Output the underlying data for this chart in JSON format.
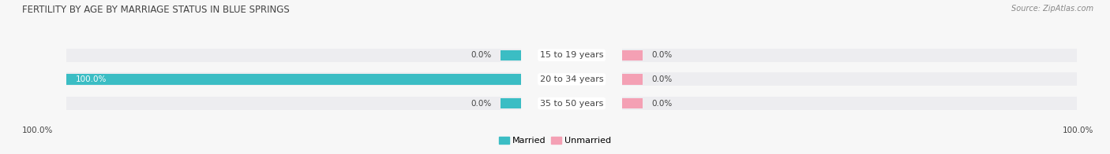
{
  "title": "FERTILITY BY AGE BY MARRIAGE STATUS IN BLUE SPRINGS",
  "source": "Source: ZipAtlas.com",
  "categories": [
    "15 to 19 years",
    "20 to 34 years",
    "35 to 50 years"
  ],
  "married_values": [
    0.0,
    100.0,
    0.0
  ],
  "unmarried_values": [
    0.0,
    0.0,
    0.0
  ],
  "married_color": "#3bbdc4",
  "unmarried_color": "#f4a0b4",
  "bar_bg_color": "#e4e4e8",
  "bar_bg_color_light": "#ededf0",
  "title_fontsize": 8.5,
  "source_fontsize": 7,
  "value_fontsize": 7.5,
  "label_fontsize": 8,
  "legend_fontsize": 8,
  "text_color": "#444444",
  "bg_color": "#f7f7f7",
  "max_val": 100.0,
  "bottom_left_label": "100.0%",
  "bottom_right_label": "100.0%"
}
